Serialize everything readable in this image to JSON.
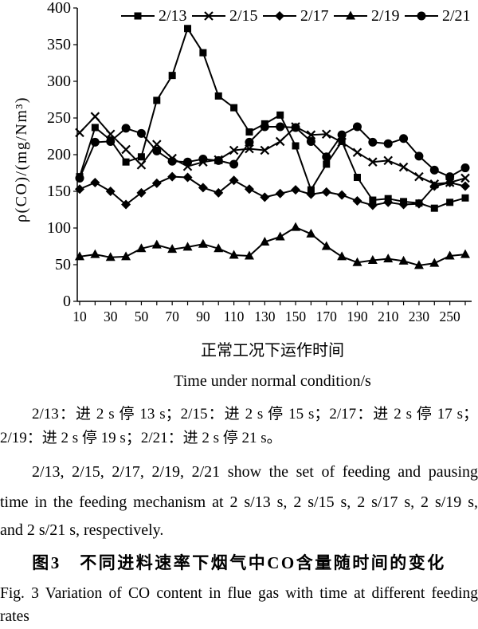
{
  "chart_data": {
    "type": "line",
    "categories": [
      10,
      20,
      30,
      40,
      50,
      60,
      70,
      80,
      90,
      100,
      110,
      120,
      130,
      140,
      150,
      160,
      170,
      180,
      190,
      200,
      210,
      220,
      230,
      240,
      250,
      260
    ],
    "xtick_labels": [
      "10",
      "30",
      "50",
      "70",
      "90",
      "110",
      "130",
      "150",
      "170",
      "190",
      "210",
      "230",
      "250"
    ],
    "ytick_labels": [
      "0",
      "50",
      "100",
      "150",
      "200",
      "250",
      "300",
      "350",
      "400"
    ],
    "ylim": [
      0,
      400
    ],
    "xlabel": [
      "正常工况下运作时间",
      "Time under normal condition/s"
    ],
    "ylabel": "ρ(CO)/(mg/Nm³)",
    "grid": false,
    "legend_position": "top",
    "series": [
      {
        "name": "2/13",
        "marker": "square",
        "values": [
          170,
          237,
          220,
          190,
          197,
          274,
          308,
          372,
          339,
          280,
          264,
          231,
          242,
          254,
          212,
          152,
          187,
          218,
          169,
          138,
          140,
          136,
          134,
          127,
          135,
          141
        ]
      },
      {
        "name": "2/15",
        "marker": "x",
        "values": [
          230,
          252,
          228,
          207,
          186,
          214,
          195,
          184,
          190,
          193,
          206,
          208,
          206,
          218,
          238,
          227,
          228,
          217,
          203,
          190,
          192,
          183,
          170,
          160,
          162,
          168
        ]
      },
      {
        "name": "2/17",
        "marker": "diamond",
        "values": [
          153,
          162,
          150,
          132,
          148,
          161,
          170,
          169,
          155,
          148,
          165,
          153,
          142,
          147,
          152,
          146,
          149,
          145,
          137,
          131,
          135,
          132,
          133,
          157,
          162,
          157
        ]
      },
      {
        "name": "2/19",
        "marker": "triangle",
        "values": [
          61,
          64,
          60,
          61,
          72,
          77,
          71,
          74,
          78,
          72,
          63,
          62,
          81,
          88,
          101,
          92,
          75,
          61,
          53,
          56,
          58,
          55,
          49,
          52,
          62,
          64
        ]
      },
      {
        "name": "2/21",
        "marker": "circle",
        "values": [
          168,
          217,
          218,
          236,
          229,
          205,
          191,
          190,
          194,
          192,
          187,
          217,
          238,
          238,
          237,
          218,
          197,
          227,
          238,
          217,
          215,
          222,
          198,
          179,
          170,
          182
        ]
      }
    ]
  },
  "notes": {
    "zh": [
      "2/13：进 2 s 停 13 s；2/15：进 2 s 停 15 s；2/17：进 2 s 停 17 s；",
      "2/19：进 2 s 停 19 s；2/21：进 2 s 停 21 s。"
    ],
    "en": [
      "2/13, 2/15, 2/17, 2/19, 2/21 show the set of feeding and pausing",
      "time in the feeding mechanism at 2 s/13 s, 2 s/15 s, 2 s/17 s, 2 s/19 s,",
      "and 2 s/21 s, respectively."
    ]
  },
  "caption": {
    "zh": "图3　不同进料速率下烟气中CO含量随时间的变化",
    "en": [
      "Fig. 3  Variation of CO content in flue gas with time at different feeding",
      "rates"
    ]
  },
  "colors": {
    "ink": "#000000",
    "background": "#ffffff"
  }
}
